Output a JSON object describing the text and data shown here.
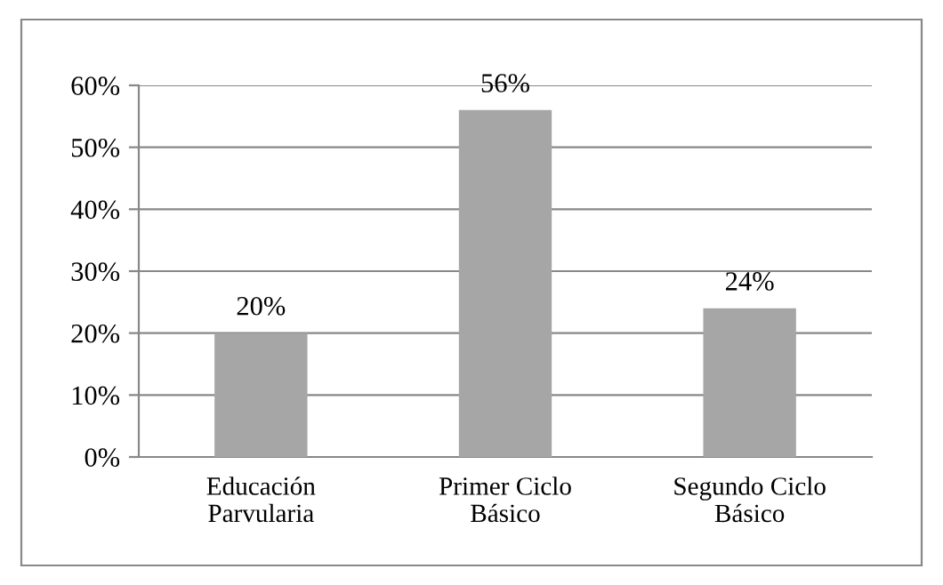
{
  "chart_data": {
    "type": "bar",
    "categories": [
      "Educación\nParvularia",
      "Primer Ciclo\nBásico",
      "Segundo Ciclo\nBásico"
    ],
    "values": [
      20,
      56,
      24
    ],
    "color": "#a6a6a6",
    "value_labels": [
      "20%",
      "56%",
      "24%"
    ],
    "ylim": [
      0,
      60
    ],
    "yticks": [
      {
        "value": 0,
        "label": "0%"
      },
      {
        "value": 10,
        "label": "10%"
      },
      {
        "value": 20,
        "label": "20%"
      },
      {
        "value": 30,
        "label": "30%"
      },
      {
        "value": 40,
        "label": "40%"
      },
      {
        "value": 50,
        "label": "50%"
      },
      {
        "value": 60,
        "label": "60%"
      }
    ],
    "grid": "y"
  }
}
